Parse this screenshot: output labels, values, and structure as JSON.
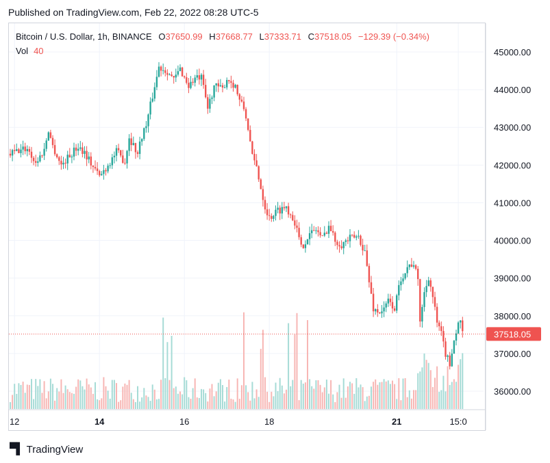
{
  "header": {
    "published": "Published on TradingView.com, Feb 22, 2022 08:28 UTC-5"
  },
  "legend": {
    "symbol": "Bitcoin / U.S. Dollar, 1h, BINANCE",
    "o_label": "O",
    "o_value": "37650.99",
    "h_label": "H",
    "h_value": "37668.77",
    "l_label": "L",
    "l_value": "37333.71",
    "c_label": "C",
    "c_value": "37518.05",
    "change": "−129.39 (−0.34%)",
    "vol_label": "Vol",
    "vol_value": "40"
  },
  "branding": {
    "logo_text": "TradingView"
  },
  "colors": {
    "up": "#26a69a",
    "down": "#ef5350",
    "up_vol": "#a6dbd6",
    "down_vol": "#f7b6b4",
    "grid": "#f0f3fa",
    "last_price_bg": "#ef5350"
  },
  "chart_data": {
    "type": "candlestick",
    "title": "Bitcoin / U.S. Dollar, 1h, BINANCE",
    "ylim": [
      35500,
      45500
    ],
    "y_ticks": [
      "36000.00",
      "37000.00",
      "38000.00",
      "39000.00",
      "40000.00",
      "41000.00",
      "42000.00",
      "43000.00",
      "44000.00",
      "45000.00"
    ],
    "y_tick_values": [
      36000,
      37000,
      38000,
      39000,
      40000,
      41000,
      42000,
      43000,
      44000,
      45000
    ],
    "x_ticks": [
      {
        "label": "12",
        "index": 2,
        "bold": false
      },
      {
        "label": "14",
        "index": 42,
        "bold": true
      },
      {
        "label": "16",
        "index": 82,
        "bold": false
      },
      {
        "label": "18",
        "index": 122,
        "bold": false
      },
      {
        "label": "21",
        "index": 182,
        "bold": true
      },
      {
        "label": "15:0",
        "index": 211,
        "bold": false
      }
    ],
    "last_price": 37518.05,
    "last_price_label": "37518.05",
    "close_path": [
      [
        0,
        42300
      ],
      [
        8,
        42450
      ],
      [
        12,
        42050
      ],
      [
        16,
        42400
      ],
      [
        18,
        42950
      ],
      [
        20,
        42500
      ],
      [
        24,
        42000
      ],
      [
        28,
        42250
      ],
      [
        32,
        42500
      ],
      [
        35,
        42350
      ],
      [
        38,
        42050
      ],
      [
        42,
        41700
      ],
      [
        46,
        42000
      ],
      [
        50,
        42350
      ],
      [
        54,
        42100
      ],
      [
        56,
        42750
      ],
      [
        60,
        42300
      ],
      [
        62,
        42800
      ],
      [
        64,
        43050
      ],
      [
        68,
        44100
      ],
      [
        70,
        44600
      ],
      [
        74,
        44500
      ],
      [
        77,
        44250
      ],
      [
        80,
        44550
      ],
      [
        84,
        44100
      ],
      [
        87,
        44300
      ],
      [
        90,
        44300
      ],
      [
        93,
        43500
      ],
      [
        96,
        44100
      ],
      [
        100,
        44000
      ],
      [
        102,
        44300
      ],
      [
        104,
        44200
      ],
      [
        106,
        44100
      ],
      [
        108,
        43700
      ],
      [
        110,
        43500
      ],
      [
        112,
        43000
      ],
      [
        114,
        42200
      ],
      [
        116,
        41950
      ],
      [
        118,
        41400
      ],
      [
        120,
        40900
      ],
      [
        122,
        40600
      ],
      [
        126,
        40800
      ],
      [
        130,
        40900
      ],
      [
        134,
        40500
      ],
      [
        137,
        39800
      ],
      [
        140,
        40100
      ],
      [
        144,
        40300
      ],
      [
        147,
        40050
      ],
      [
        150,
        40400
      ],
      [
        153,
        40000
      ],
      [
        156,
        39900
      ],
      [
        160,
        40050
      ],
      [
        164,
        40100
      ],
      [
        167,
        39700
      ],
      [
        169,
        38900
      ],
      [
        171,
        38200
      ],
      [
        173,
        38100
      ],
      [
        176,
        38150
      ],
      [
        178,
        38400
      ],
      [
        181,
        38200
      ],
      [
        184,
        39000
      ],
      [
        187,
        39300
      ],
      [
        190,
        39400
      ],
      [
        192,
        38900
      ],
      [
        193,
        37900
      ],
      [
        195,
        38600
      ],
      [
        197,
        39050
      ],
      [
        199,
        38500
      ],
      [
        201,
        37800
      ],
      [
        203,
        37500
      ],
      [
        205,
        37000
      ],
      [
        207,
        36700
      ],
      [
        208,
        37100
      ],
      [
        210,
        37600
      ],
      [
        212,
        37900
      ],
      [
        213,
        37518
      ]
    ],
    "volume_max": 9000
  }
}
